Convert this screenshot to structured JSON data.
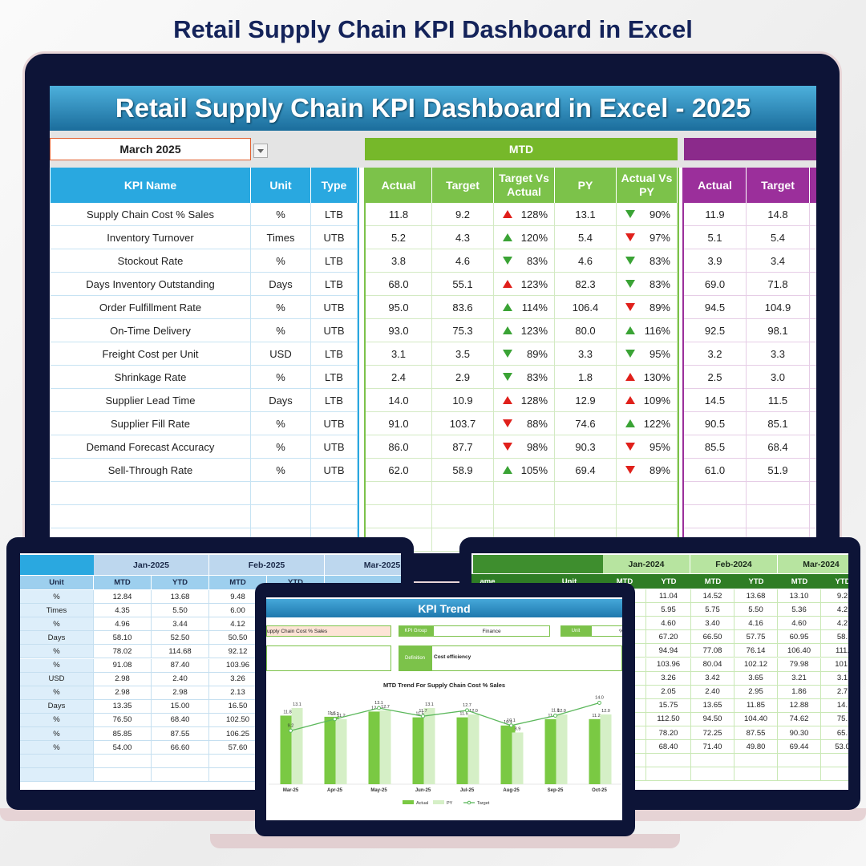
{
  "page_title": "Retail Supply Chain KPI Dashboard in Excel",
  "dashboard": {
    "banner": "Retail Supply Chain KPI Dashboard in Excel - 2025",
    "month": "March 2025",
    "mtd": "MTD",
    "headers": [
      "KPI Name",
      "Unit",
      "Type",
      "Actual",
      "Target",
      "Target Vs Actual",
      "PY",
      "Actual Vs PY",
      "Actual",
      "Target"
    ],
    "rows": [
      [
        "Supply Chain Cost % Sales",
        "%",
        "LTB",
        "11.8",
        "9.2",
        {
          "value": 128,
          "label": "128%",
          "color": "#e0201b"
        },
        "13.1",
        {
          "value": 90,
          "label": "90%",
          "color": "#3aa335"
        },
        "11.9",
        "14.8"
      ],
      [
        "Inventory Turnover",
        "Times",
        "UTB",
        "5.2",
        "4.3",
        {
          "value": 120,
          "label": "120%",
          "color": "#3aa335"
        },
        "5.4",
        {
          "value": 97,
          "label": "97%",
          "color": "#e0201b"
        },
        "5.1",
        "5.4"
      ],
      [
        "Stockout Rate",
        "%",
        "LTB",
        "3.8",
        "4.6",
        {
          "value": 83,
          "label": "83%",
          "color": "#3aa335"
        },
        "4.6",
        {
          "value": 83,
          "label": "83%",
          "color": "#3aa335"
        },
        "3.9",
        "3.4"
      ],
      [
        "Days Inventory Outstanding",
        "Days",
        "LTB",
        "68.0",
        "55.1",
        {
          "value": 123,
          "label": "123%",
          "color": "#e0201b"
        },
        "82.3",
        {
          "value": 83,
          "label": "83%",
          "color": "#3aa335"
        },
        "69.0",
        "71.8"
      ],
      [
        "Order Fulfillment Rate",
        "%",
        "UTB",
        "95.0",
        "83.6",
        {
          "value": 114,
          "label": "114%",
          "color": "#3aa335"
        },
        "106.4",
        {
          "value": 89,
          "label": "89%",
          "color": "#e0201b"
        },
        "94.5",
        "104.9"
      ],
      [
        "On-Time Delivery",
        "%",
        "UTB",
        "93.0",
        "75.3",
        {
          "value": 123,
          "label": "123%",
          "color": "#3aa335"
        },
        "80.0",
        {
          "value": 116,
          "label": "116%",
          "color": "#3aa335"
        },
        "92.5",
        "98.1"
      ],
      [
        "Freight Cost per Unit",
        "USD",
        "LTB",
        "3.1",
        "3.5",
        {
          "value": 89,
          "label": "89%",
          "color": "#3aa335"
        },
        "3.3",
        {
          "value": 95,
          "label": "95%",
          "color": "#3aa335"
        },
        "3.2",
        "3.3"
      ],
      [
        "Shrinkage Rate",
        "%",
        "LTB",
        "2.4",
        "2.9",
        {
          "value": 83,
          "label": "83%",
          "color": "#3aa335"
        },
        "1.8",
        {
          "value": 130,
          "label": "130%",
          "color": "#e0201b"
        },
        "2.5",
        "3.0"
      ],
      [
        "Supplier Lead Time",
        "Days",
        "LTB",
        "14.0",
        "10.9",
        {
          "value": 128,
          "label": "128%",
          "color": "#e0201b"
        },
        "12.9",
        {
          "value": 109,
          "label": "109%",
          "color": "#e0201b"
        },
        "14.5",
        "11.5"
      ],
      [
        "Supplier Fill Rate",
        "%",
        "UTB",
        "91.0",
        "103.7",
        {
          "value": 88,
          "label": "88%",
          "color": "#e0201b"
        },
        "74.6",
        {
          "value": 122,
          "label": "122%",
          "color": "#3aa335"
        },
        "90.5",
        "85.1"
      ],
      [
        "Demand Forecast Accuracy",
        "%",
        "UTB",
        "86.0",
        "87.7",
        {
          "value": 98,
          "label": "98%",
          "color": "#e0201b"
        },
        "90.3",
        {
          "value": 95,
          "label": "95%",
          "color": "#e0201b"
        },
        "85.5",
        "68.4"
      ],
      [
        "Sell-Through Rate",
        "%",
        "UTB",
        "62.0",
        "58.9",
        {
          "value": 105,
          "label": "105%",
          "color": "#3aa335"
        },
        "69.4",
        {
          "value": 89,
          "label": "89%",
          "color": "#e0201b"
        },
        "61.0",
        "51.9"
      ]
    ]
  },
  "left_table": {
    "months": [
      "Jan-2025",
      "Feb-2025",
      "Mar-2025"
    ],
    "subheaders": [
      "Unit",
      "MTD",
      "YTD",
      "MTD",
      "YTD"
    ],
    "rows": [
      [
        "%",
        "12.84",
        "13.68",
        "9.48"
      ],
      [
        "Times",
        "4.35",
        "5.50",
        "6.00"
      ],
      [
        "%",
        "4.96",
        "3.44",
        "4.12"
      ],
      [
        "Days",
        "58.10",
        "52.50",
        "50.50"
      ],
      [
        "%",
        "78.02",
        "114.68",
        "92.12"
      ],
      [
        "%",
        "91.08",
        "87.40",
        "103.96"
      ],
      [
        "USD",
        "2.98",
        "2.40",
        "3.26"
      ],
      [
        "%",
        "2.98",
        "2.98",
        "2.13"
      ],
      [
        "Days",
        "13.35",
        "15.00",
        "16.50"
      ],
      [
        "%",
        "76.50",
        "68.40",
        "102.50"
      ],
      [
        "%",
        "85.85",
        "87.55",
        "106.25"
      ],
      [
        "%",
        "54.00",
        "66.60",
        "57.60"
      ]
    ]
  },
  "right_table": {
    "months": [
      "Jan-2024",
      "Feb-2024",
      "Mar-2024"
    ],
    "subheaders": [
      "ame",
      "Unit",
      "MTD",
      "YTD",
      "MTD",
      "YTD",
      "MTD",
      "YTD"
    ],
    "rows": [
      [
        "11.04",
        "14.52",
        "13.68",
        "13.10",
        "9.2"
      ],
      [
        "5.95",
        "5.75",
        "5.50",
        "5.36",
        "4.2"
      ],
      [
        "4.60",
        "3.40",
        "4.16",
        "4.60",
        "4.2"
      ],
      [
        "67.20",
        "66.50",
        "57.75",
        "60.95",
        "58."
      ],
      [
        "94.94",
        "77.08",
        "76.14",
        "106.40",
        "111."
      ],
      [
        "103.96",
        "80.04",
        "102.12",
        "79.98",
        "101."
      ],
      [
        "3.26",
        "3.42",
        "3.65",
        "3.21",
        "3.1"
      ],
      [
        "2.05",
        "2.40",
        "2.95",
        "1.86",
        "2.7"
      ],
      [
        "15.75",
        "13.65",
        "11.85",
        "12.88",
        "14."
      ],
      [
        "112.50",
        "94.50",
        "104.40",
        "74.62",
        "75."
      ],
      [
        "78.20",
        "72.25",
        "87.55",
        "90.30",
        "65."
      ],
      [
        "68.40",
        "71.40",
        "49.80",
        "69.44",
        "53.0"
      ]
    ]
  },
  "trend": {
    "title": "KPI Trend",
    "kpi": "upply Chain Cost % Sales",
    "group_label": "KPI Group",
    "group": "Finance",
    "unit_label": "Unit",
    "unit": "%",
    "definition_label": "Definition",
    "definition": "Cost efficiency"
  },
  "chart_data": {
    "type": "bar",
    "title": "MTD Trend For Supply Chain Cost % Sales",
    "categories": [
      "Mar-25",
      "Apr-25",
      "May-25",
      "Jun-25",
      "Jul-25",
      "Aug-25",
      "Sep-25",
      "Oct-25"
    ],
    "series": [
      {
        "name": "Actual",
        "color": "#7ac943",
        "values": [
          11.8,
          11.6,
          12.5,
          11.5,
          11.5,
          10.1,
          11.2,
          11.2
        ],
        "value_labels": [
          "11.8",
          "11.6",
          "12.5",
          "11.5",
          "11.5",
          "10.1",
          "11.2",
          "11.2"
        ]
      },
      {
        "name": "PY",
        "color": "#d5efc6",
        "values": [
          13.1,
          11.2,
          12.7,
          13.1,
          12.0,
          8.9,
          12.0,
          12.0
        ],
        "value_labels": [
          "13.1",
          "11.2",
          "12.7",
          "13.1",
          "12.0",
          "8.9",
          "12.0",
          "12.0"
        ]
      },
      {
        "name": "Target",
        "type": "line",
        "color": "#5cb85c",
        "values": [
          9.2,
          11.2,
          13.1,
          11.7,
          12.7,
          10.1,
          11.8,
          14.0
        ],
        "value_labels": [
          "9.2",
          "11.2",
          "13.1",
          "11.7",
          "12.7",
          "10.1",
          "11.8",
          "14.0"
        ]
      }
    ],
    "ylim": [
      0,
      16
    ]
  }
}
